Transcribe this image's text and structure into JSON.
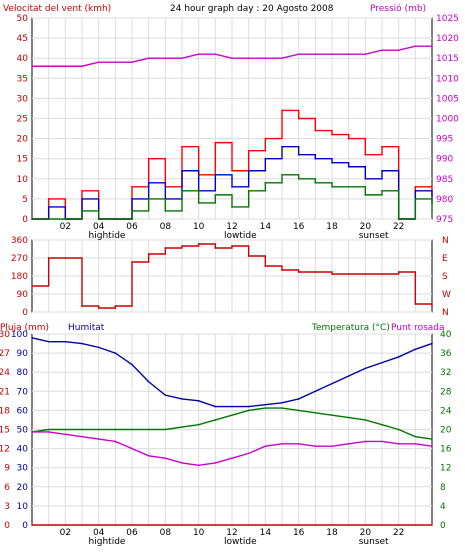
{
  "header": {
    "left": "Velocitat del vent (kmh)",
    "center": "24 hour graph day : 20 Agosto 2008",
    "right": "Pressió (mb)"
  },
  "colors": {
    "wind_speed": "#ff0000",
    "wind_avg": "#0000cc",
    "wind_min": "#007700",
    "pressure": "#cc00cc",
    "direction": "#cc0000",
    "rain": "#cc0000",
    "humidity": "#0000aa",
    "temperature": "#007700",
    "dewpoint": "#cc00cc",
    "grid": "#c0c0c0"
  },
  "x_ticks": [
    "02",
    "04",
    "06",
    "08",
    "10",
    "12",
    "14",
    "16",
    "18",
    "20",
    "22"
  ],
  "x_annotations": {
    "hightide": "hightide",
    "lowtide": "lowtide",
    "sunset": "sunset"
  },
  "chart_data": [
    {
      "type": "line",
      "title": "24 hour graph day : 20 Agosto 2008",
      "x_label": "",
      "y_left_label": "Velocitat del vent (kmh)",
      "y_right_label": "Pressió (mb)",
      "y_left_ticks": [
        0,
        5,
        10,
        15,
        20,
        25,
        30,
        35,
        40,
        45,
        50
      ],
      "y_right_ticks": [
        975,
        980,
        985,
        990,
        995,
        1000,
        1005,
        1010,
        1015,
        1020,
        1025
      ],
      "ylim_left": [
        0,
        50
      ],
      "ylim_right": [
        975,
        1025
      ],
      "x": [
        0,
        1,
        2,
        3,
        4,
        5,
        6,
        7,
        8,
        9,
        10,
        11,
        12,
        13,
        14,
        15,
        16,
        17,
        18,
        19,
        20,
        21,
        22,
        23,
        24
      ],
      "series": [
        {
          "key": "wind_gust",
          "values": [
            0,
            5,
            0,
            7,
            0,
            0,
            8,
            15,
            8,
            18,
            11,
            19,
            12,
            17,
            20,
            27,
            25,
            22,
            21,
            20,
            16,
            18,
            0,
            8,
            6
          ]
        },
        {
          "key": "wind_avg",
          "values": [
            0,
            3,
            0,
            5,
            0,
            0,
            5,
            9,
            5,
            12,
            7,
            11,
            8,
            12,
            15,
            18,
            16,
            15,
            14,
            13,
            10,
            12,
            0,
            7,
            4
          ]
        },
        {
          "key": "wind_min",
          "values": [
            0,
            0,
            0,
            2,
            0,
            0,
            2,
            5,
            2,
            7,
            4,
            6,
            3,
            7,
            9,
            11,
            10,
            9,
            8,
            8,
            6,
            7,
            0,
            5,
            2
          ]
        },
        {
          "key": "pressure",
          "values": [
            1013,
            1013,
            1013,
            1013,
            1014,
            1014,
            1014,
            1015,
            1015,
            1015,
            1016,
            1016,
            1015,
            1015,
            1015,
            1015,
            1016,
            1016,
            1016,
            1016,
            1016,
            1017,
            1017,
            1018,
            1018
          ]
        }
      ],
      "grid": true
    },
    {
      "type": "line",
      "y_left_ticks": [
        0,
        90,
        180,
        270,
        360
      ],
      "y_right_labels": [
        "N",
        "W",
        "S",
        "E",
        "N"
      ],
      "ylim_left": [
        0,
        360
      ],
      "x": [
        0,
        1,
        2,
        3,
        4,
        5,
        6,
        7,
        8,
        9,
        10,
        11,
        12,
        13,
        14,
        15,
        16,
        17,
        18,
        19,
        20,
        21,
        22,
        23,
        24
      ],
      "series": [
        {
          "key": "direction",
          "values": [
            130,
            270,
            270,
            30,
            20,
            30,
            250,
            290,
            320,
            330,
            340,
            320,
            330,
            280,
            230,
            210,
            200,
            200,
            190,
            190,
            190,
            190,
            200,
            40,
            30
          ]
        }
      ],
      "grid": true
    },
    {
      "type": "line",
      "y_left_label": "Pluja (mm)",
      "y_left2_label": "Humitat",
      "y_right_label": "Temperatura (°C)",
      "y_right2_label": "Punt rosada",
      "y_left_ticks": [
        0,
        3,
        6,
        9,
        12,
        15,
        18,
        21,
        24,
        27,
        30
      ],
      "y_left2_ticks": [
        0,
        10,
        20,
        30,
        40,
        50,
        60,
        70,
        80,
        90,
        100
      ],
      "y_right_ticks": [
        0,
        4,
        8,
        12,
        16,
        20,
        24,
        28,
        32,
        36,
        40
      ],
      "ylim_left": [
        0,
        30
      ],
      "ylim_left2": [
        0,
        100
      ],
      "ylim_right": [
        0,
        40
      ],
      "x": [
        0,
        1,
        2,
        3,
        4,
        5,
        6,
        7,
        8,
        9,
        10,
        11,
        12,
        13,
        14,
        15,
        16,
        17,
        18,
        19,
        20,
        21,
        22,
        23,
        24
      ],
      "series": [
        {
          "key": "rain",
          "values": [
            0,
            0,
            0,
            0,
            0,
            0,
            0,
            0,
            0,
            0,
            0,
            0,
            0,
            0,
            0,
            0,
            0,
            0,
            0,
            0,
            0,
            0,
            0,
            0,
            0
          ]
        },
        {
          "key": "humidity",
          "values": [
            98,
            96,
            96,
            95,
            93,
            90,
            84,
            75,
            68,
            66,
            65,
            62,
            62,
            62,
            63,
            64,
            66,
            70,
            74,
            78,
            82,
            85,
            88,
            92,
            95
          ]
        },
        {
          "key": "temperature",
          "values": [
            19.5,
            20,
            20,
            20,
            20,
            20,
            20,
            20,
            20,
            20.5,
            21,
            22,
            23,
            24,
            24.5,
            24.5,
            24,
            23.5,
            23,
            22.5,
            22,
            21,
            20,
            18.5,
            18
          ]
        },
        {
          "key": "dewpoint",
          "values": [
            19.5,
            19.5,
            19,
            18.5,
            18,
            17.5,
            16,
            14.5,
            14,
            13,
            12.5,
            13,
            14,
            15,
            16.5,
            17,
            17,
            16.5,
            16.5,
            17,
            17.5,
            17.5,
            17,
            17,
            16.5
          ]
        }
      ],
      "grid": true
    }
  ]
}
